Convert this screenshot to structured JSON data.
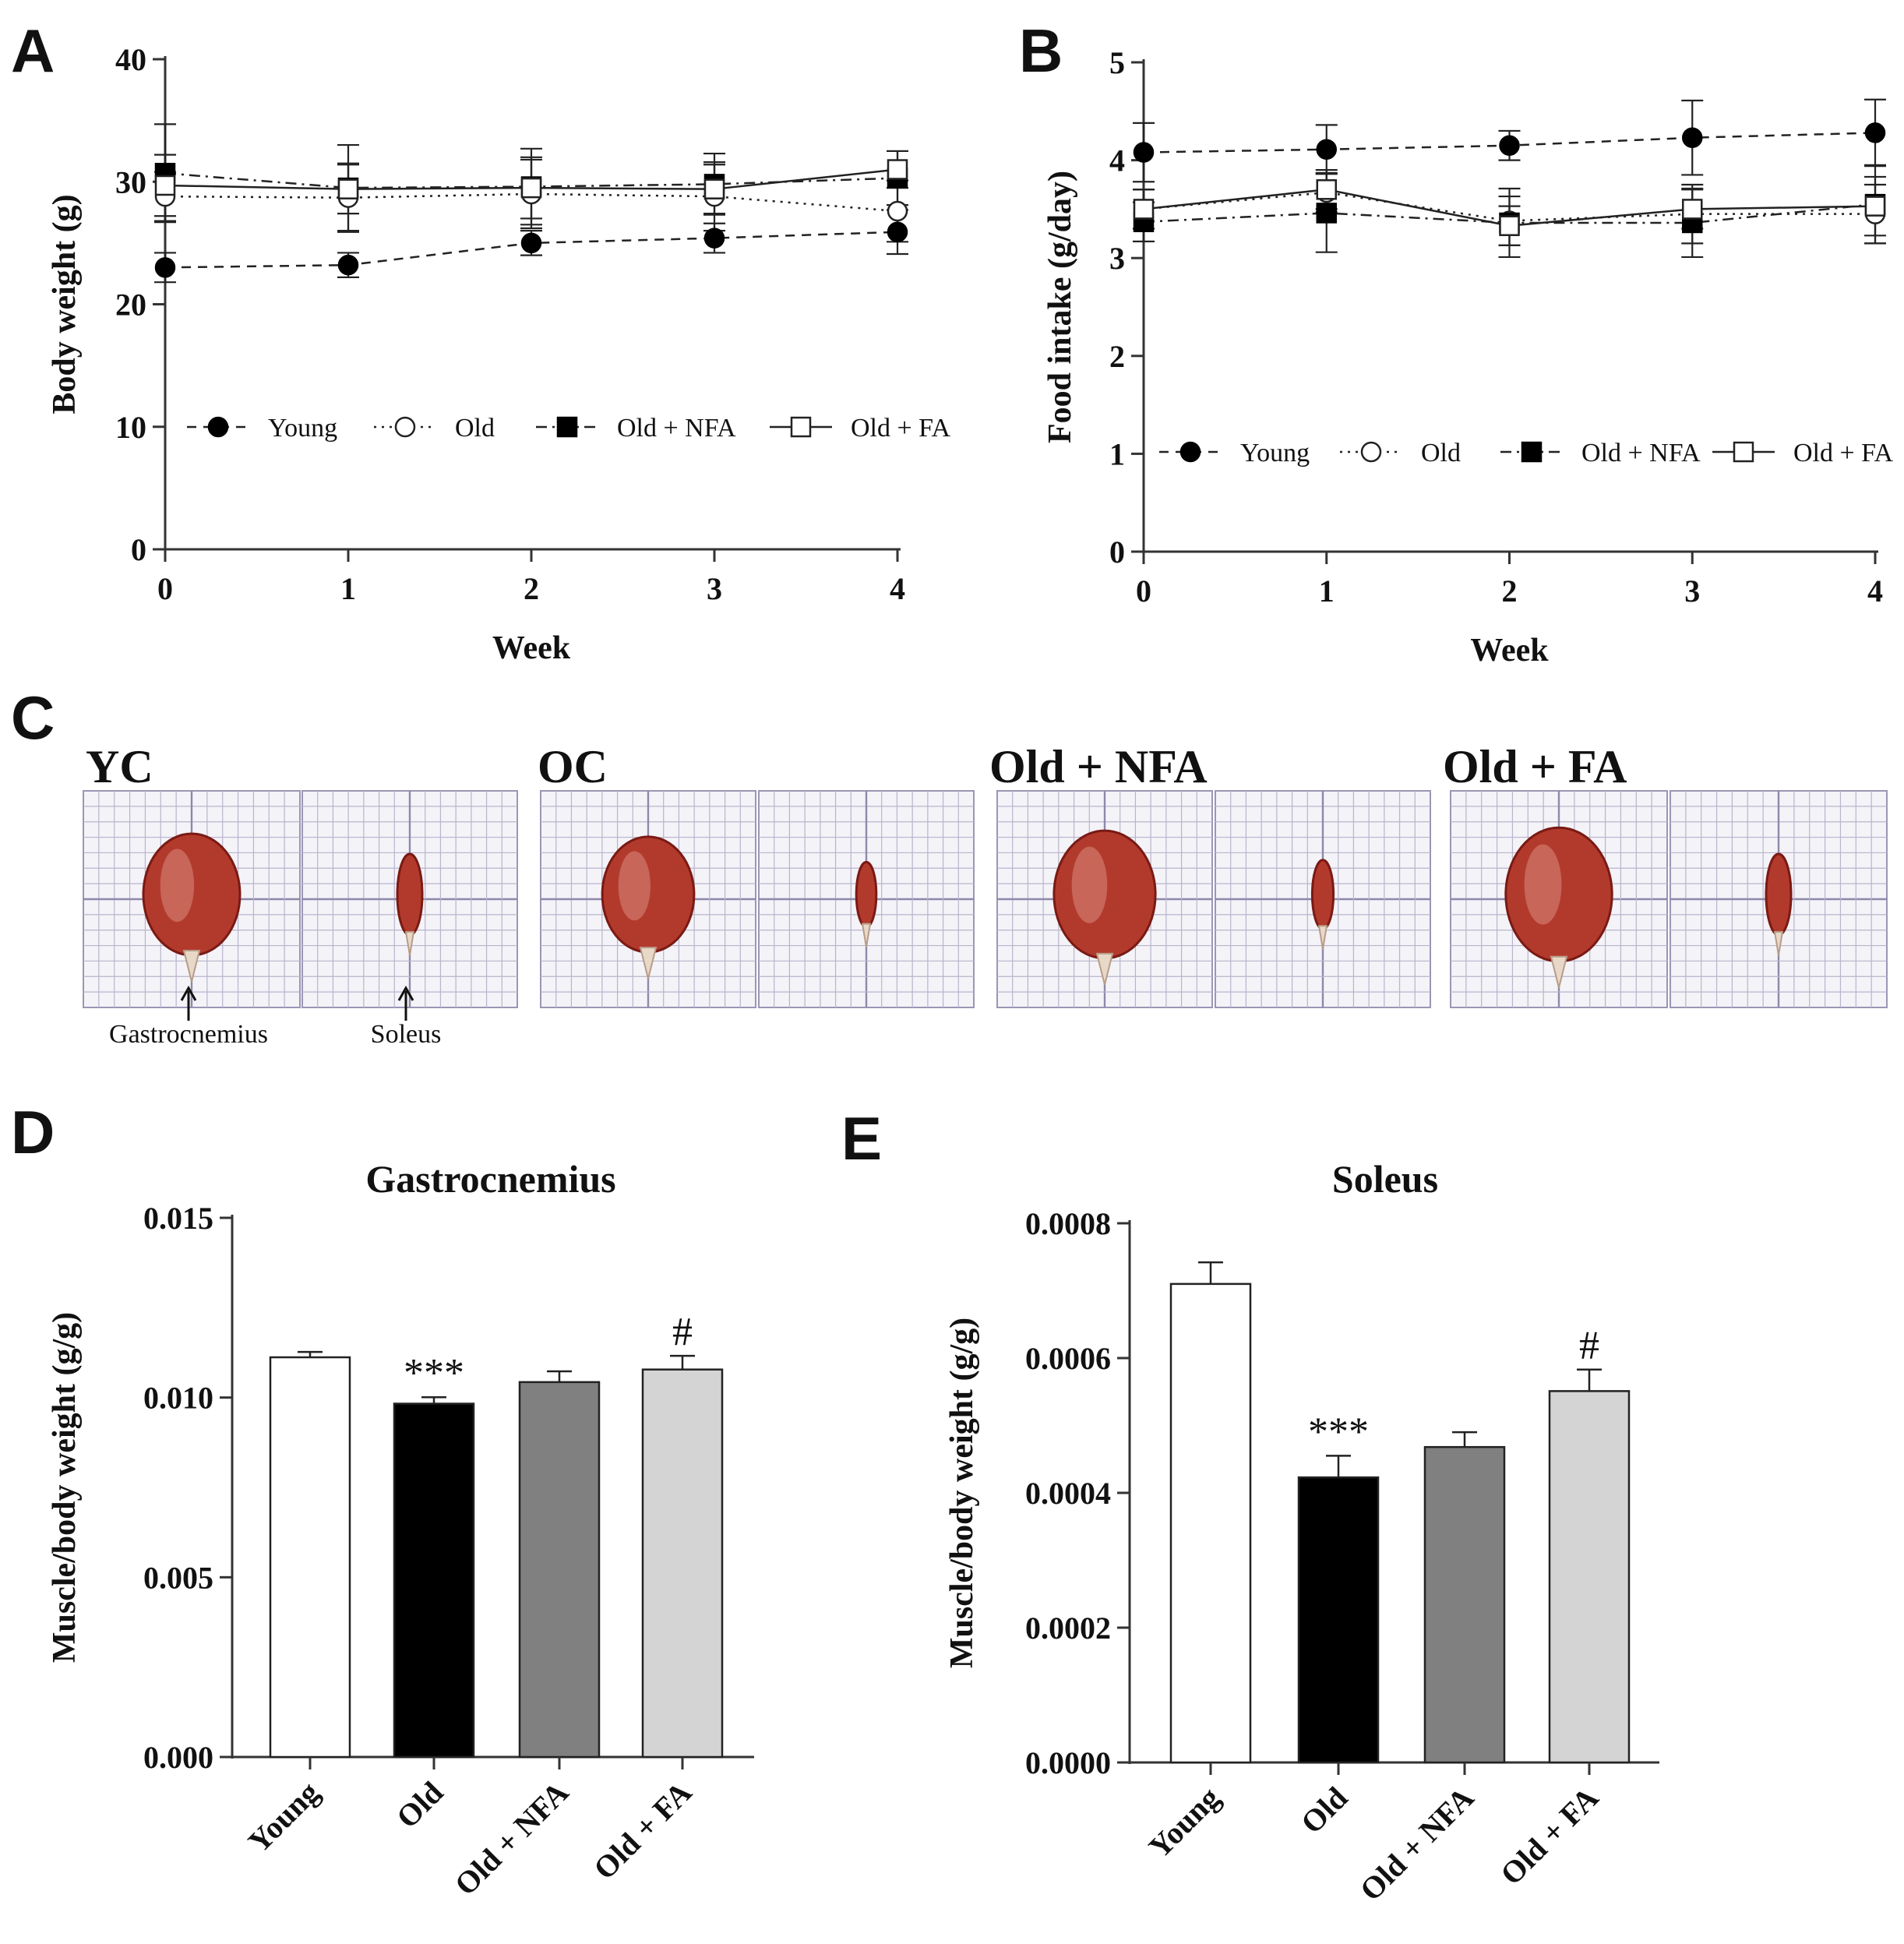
{
  "chart_data": [
    {
      "panel": "A",
      "type": "line",
      "title": "",
      "xlabel": "Week",
      "ylabel": "Body weight  (g)",
      "x": [
        0,
        1,
        2,
        3,
        4
      ],
      "xticks": [
        "0",
        "1",
        "2",
        "3",
        "4"
      ],
      "yticks": [
        "0",
        "10",
        "20",
        "30",
        "40"
      ],
      "ylim": [
        0,
        40
      ],
      "legend": "bottom",
      "series": [
        {
          "name": "Young",
          "marker": "filled-circle",
          "line": "dashed",
          "values": [
            23.0,
            23.2,
            25.0,
            25.4,
            25.9
          ],
          "errors": [
            1.2,
            1.0,
            1.0,
            1.2,
            1.8
          ]
        },
        {
          "name": "Old",
          "marker": "open-circle",
          "line": "dotted",
          "values": [
            28.8,
            28.7,
            29.0,
            28.8,
            27.6
          ],
          "errors": [
            2.0,
            2.8,
            2.8,
            2.8,
            2.5
          ]
        },
        {
          "name": "Old + NFA",
          "marker": "filled-square",
          "line": "dashdot",
          "values": [
            30.7,
            29.5,
            29.6,
            29.8,
            30.3
          ],
          "errors": [
            4.0,
            3.5,
            3.1,
            2.5,
            2.2
          ]
        },
        {
          "name": "Old + FA",
          "marker": "open-square",
          "line": "solid",
          "values": [
            29.7,
            29.4,
            29.5,
            29.4,
            31.0
          ],
          "errors": [
            2.5,
            2.0,
            2.5,
            2.0,
            1.5
          ]
        }
      ]
    },
    {
      "panel": "B",
      "type": "line",
      "title": "",
      "xlabel": "Week",
      "ylabel": "Food intake (g/day)",
      "x": [
        0,
        1,
        2,
        3,
        4
      ],
      "xticks": [
        "0",
        "1",
        "2",
        "3",
        "4"
      ],
      "yticks": [
        "0",
        "1",
        "2",
        "3",
        "4",
        "5"
      ],
      "ylim": [
        0,
        5
      ],
      "legend": "bottom",
      "series": [
        {
          "name": "Young",
          "marker": "filled-circle",
          "line": "dashed",
          "values": [
            4.08,
            4.11,
            4.15,
            4.23,
            4.28
          ],
          "errors": [
            0.3,
            0.25,
            0.15,
            0.38,
            0.34
          ]
        },
        {
          "name": "Old",
          "marker": "open-circle",
          "line": "dotted",
          "values": [
            3.5,
            3.67,
            3.38,
            3.45,
            3.45
          ],
          "errors": [
            0.2,
            0.2,
            0.25,
            0.3,
            0.3
          ]
        },
        {
          "name": "Old + NFA",
          "marker": "filled-square",
          "line": "dashdot",
          "values": [
            3.37,
            3.46,
            3.36,
            3.36,
            3.55
          ],
          "errors": [
            0.2,
            0.4,
            0.35,
            0.35,
            0.4
          ]
        },
        {
          "name": "Old + FA",
          "marker": "open-square",
          "line": "solid",
          "values": [
            3.5,
            3.7,
            3.33,
            3.5,
            3.53
          ],
          "errors": [
            0.2,
            0.2,
            0.2,
            0.2,
            0.3
          ]
        }
      ]
    },
    {
      "panel": "D",
      "type": "bar",
      "title": "Gastrocnemius",
      "xlabel": "",
      "ylabel": "Muscle/body weight (g/g)",
      "categories": [
        "Young",
        "Old",
        "Old + NFA",
        "Old + FA"
      ],
      "values": [
        0.01112,
        0.00983,
        0.01043,
        0.01078
      ],
      "errors": [
        0.00015,
        0.00018,
        0.0003,
        0.00038
      ],
      "annotations": [
        "",
        "***",
        "",
        "#"
      ],
      "colors": [
        "#ffffff",
        "#000000",
        "#808080",
        "#d4d4d4"
      ],
      "yticks": [
        "0.000",
        "0.005",
        "0.010",
        "0.015"
      ],
      "ylim": [
        0,
        0.015
      ]
    },
    {
      "panel": "E",
      "type": "bar",
      "title": "Soleus",
      "xlabel": "",
      "ylabel": "Muscle/body weight (g/g)",
      "categories": [
        "Young",
        "Old",
        "Old + NFA",
        "Old + FA"
      ],
      "values": [
        0.00071,
        0.000423,
        0.000468,
        0.000551
      ],
      "errors": [
        3.2e-05,
        3.2e-05,
        2.2e-05,
        3.2e-05
      ],
      "annotations": [
        "",
        "***",
        "",
        "#"
      ],
      "colors": [
        "#ffffff",
        "#000000",
        "#808080",
        "#d4d4d4"
      ],
      "yticks": [
        "0.0000",
        "0.0002",
        "0.0004",
        "0.0006",
        "0.0008"
      ],
      "ylim": [
        0,
        0.0008
      ]
    }
  ],
  "panel_letters": {
    "a": "A",
    "b": "B",
    "c": "C",
    "d": "D",
    "e": "E"
  },
  "photo_panel": {
    "groups": [
      {
        "title": "YC"
      },
      {
        "title": "OC"
      },
      {
        "title": "Old + NFA"
      },
      {
        "title": "Old + FA"
      }
    ],
    "captions": {
      "gastrocnemius": "Gastrocnemius",
      "soleus": "Soleus"
    },
    "colors": {
      "grid_paper": "#f4f3f8",
      "muscle_dark": "#7a1a14",
      "muscle_mid": "#b23a2c",
      "muscle_light": "#d88a80"
    }
  },
  "colors": {
    "axis": "#333333",
    "text": "#111111"
  }
}
